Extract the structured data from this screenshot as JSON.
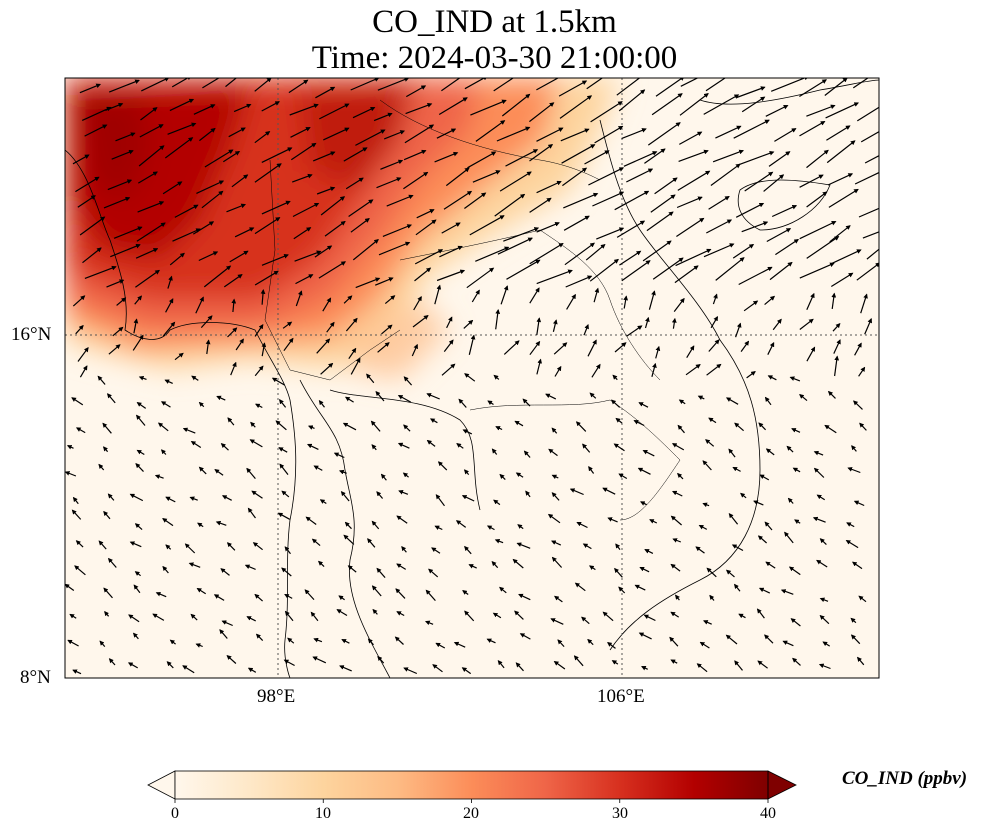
{
  "title_line1": "CO_IND at 1.5km",
  "title_line2": "Time: 2024-03-30 21:00:00",
  "lat_ticks": [
    {
      "value": 16,
      "label": "16°N"
    },
    {
      "value": 8,
      "label": "8°N"
    }
  ],
  "lon_ticks": [
    {
      "value": 98,
      "label": "98°E"
    },
    {
      "value": 106,
      "label": "106°E"
    }
  ],
  "map_extent": {
    "lon_min": 93,
    "lon_max": 112,
    "lat_min": 8,
    "lat_max": 22
  },
  "colorbar": {
    "label": "CO_IND (ppbv)",
    "min": 0,
    "max": 40,
    "ticks": [
      "0",
      "10",
      "20",
      "30",
      "40"
    ],
    "colormap": "OrRd",
    "colors": [
      "#fff7ec",
      "#fee8c8",
      "#fdd49e",
      "#fdbb84",
      "#fc8d59",
      "#ef6548",
      "#d7301f",
      "#b30000",
      "#7f0000"
    ],
    "extend": "both"
  },
  "plume": {
    "description_values_ppbv": "highest 30-36 over northern Myanmar, 20-30 over Shan/northern Thailand, 5-15 over Laos/Guangxi fringe, near 0 south of 15N"
  },
  "wind_vectors": "quiver arrows: south of 14N mostly from SE (pointing NW); north of 17N westerly (pointing E/NE)"
}
